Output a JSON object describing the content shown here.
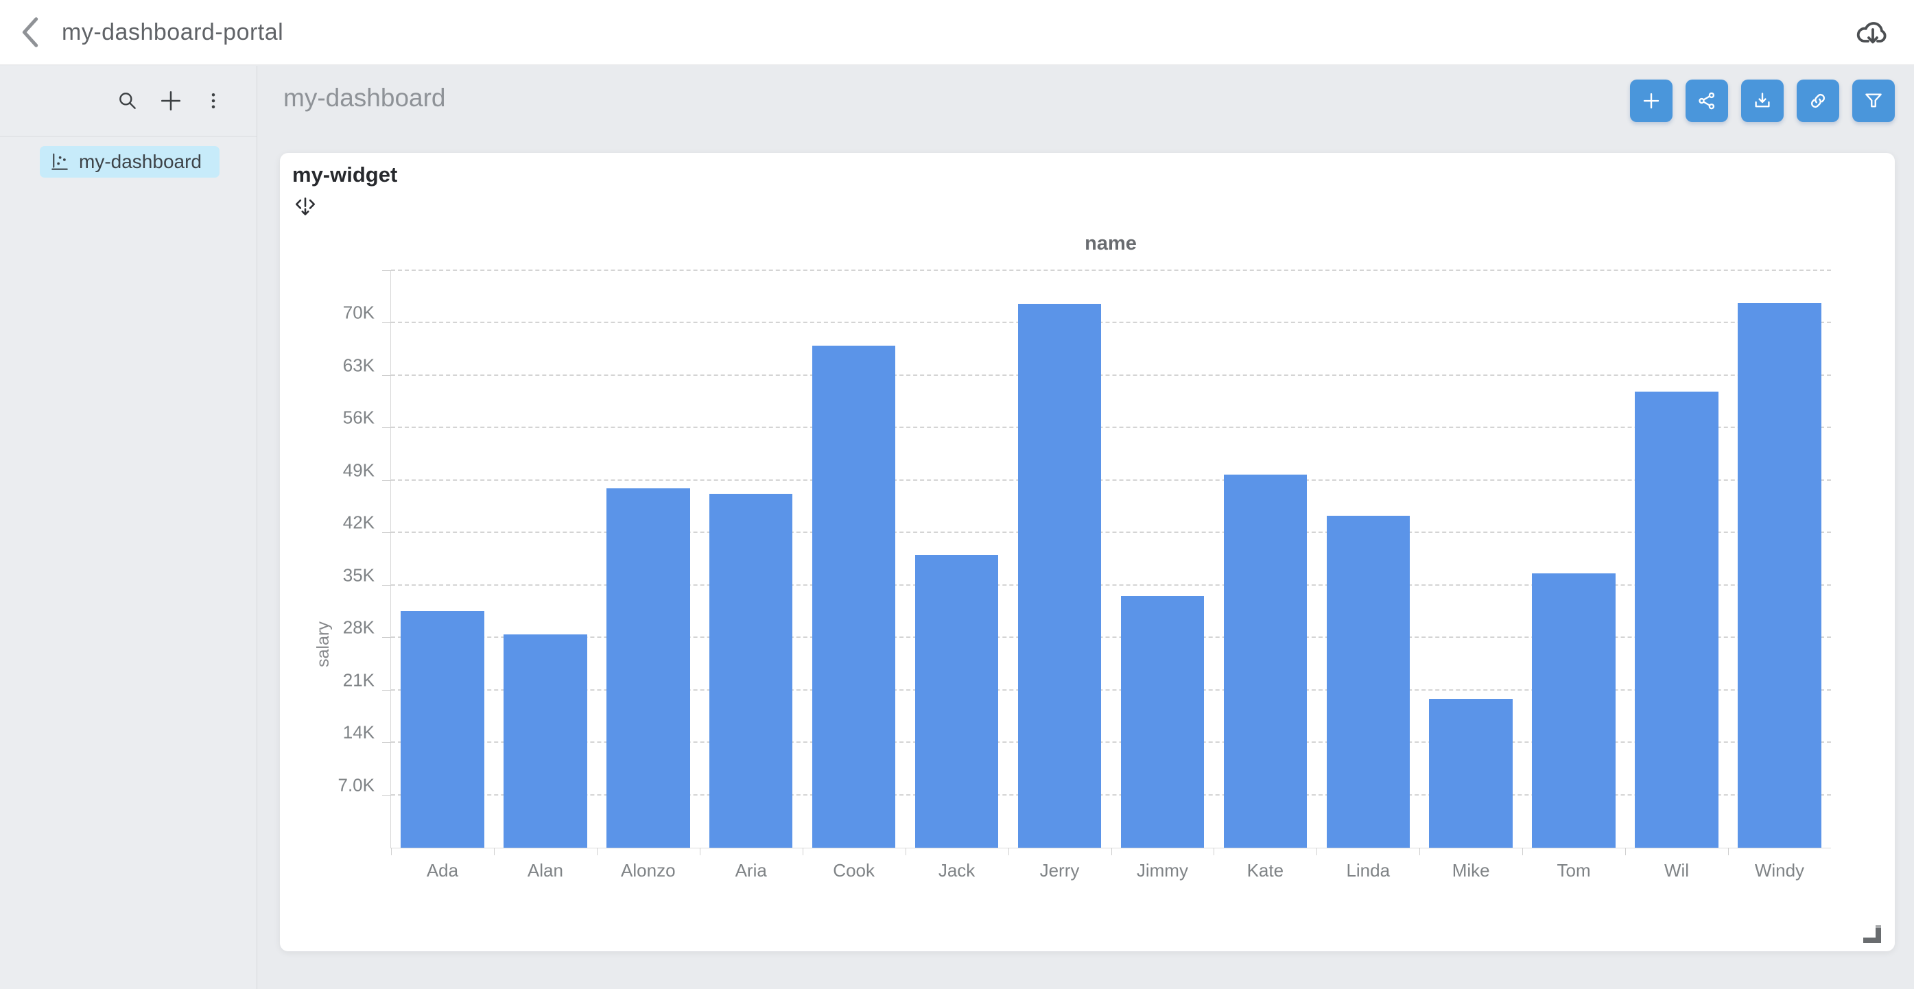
{
  "header": {
    "title": "my-dashboard-portal",
    "back_icon": "chevron-left",
    "cloud_icon": "cloud-download"
  },
  "sidebar": {
    "tools": [
      {
        "name": "search",
        "icon": "magnifier"
      },
      {
        "name": "add",
        "icon": "plus"
      },
      {
        "name": "more",
        "icon": "kebab-dots"
      }
    ],
    "items": [
      {
        "label": "my-dashboard",
        "icon": "scatter-chart",
        "selected": true
      }
    ],
    "selected_bg": "#c7ebfa"
  },
  "main": {
    "title": "my-dashboard",
    "toolbar_buttons": [
      {
        "name": "add-widget",
        "icon": "plus"
      },
      {
        "name": "share",
        "icon": "share-nodes"
      },
      {
        "name": "export",
        "icon": "download-tray"
      },
      {
        "name": "copy-link",
        "icon": "link-chain"
      },
      {
        "name": "filter",
        "icon": "funnel"
      }
    ],
    "button_color": "#4a96db"
  },
  "widget": {
    "title": "my-widget",
    "move_icon": "drag-move",
    "resize_icon": "resize-corner"
  },
  "chart_data": {
    "type": "bar",
    "title": "name",
    "xlabel": "name",
    "ylabel": "salary",
    "categories": [
      "Ada",
      "Alan",
      "Alonzo",
      "Aria",
      "Cook",
      "Jack",
      "Jerry",
      "Jimmy",
      "Kate",
      "Linda",
      "Mike",
      "Tom",
      "Wil",
      "Windy"
    ],
    "values": [
      31600,
      28500,
      48000,
      47200,
      67000,
      39100,
      72600,
      33600,
      49800,
      44300,
      19900,
      36600,
      60900,
      72700
    ],
    "yticks": [
      7000,
      14000,
      21000,
      28000,
      35000,
      42000,
      49000,
      56000,
      63000,
      70000
    ],
    "ytick_labels": [
      "7.0K",
      "14K",
      "21K",
      "28K",
      "35K",
      "42K",
      "49K",
      "56K",
      "63K",
      "70K"
    ],
    "ylim": [
      0,
      77000
    ],
    "bar_color": "#5b94e8",
    "grid": "horizontal-dashed",
    "legend": "none"
  }
}
